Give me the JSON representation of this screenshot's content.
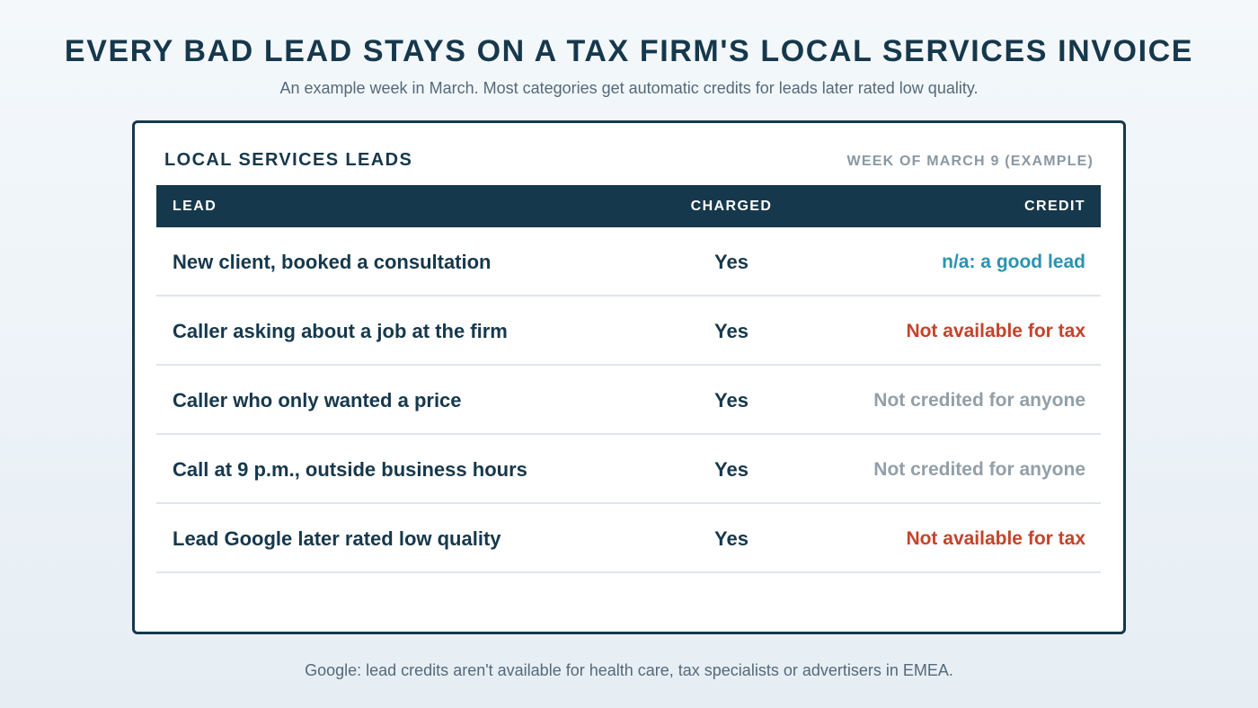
{
  "headline": "EVERY BAD LEAD STAYS ON A TAX FIRM'S LOCAL SERVICES INVOICE",
  "subhead": "An example week in March. Most categories get automatic credits for leads later rated low quality.",
  "card": {
    "title": "LOCAL SERVICES LEADS",
    "meta": "WEEK OF MARCH 9 (EXAMPLE)",
    "columns": {
      "lead": "LEAD",
      "charged": "CHARGED",
      "credit": "CREDIT"
    },
    "rows": [
      {
        "lead": "New client, booked a consultation",
        "charged": "Yes",
        "credit": "n/a: a good lead",
        "status": "good"
      },
      {
        "lead": "Caller asking about a job at the firm",
        "charged": "Yes",
        "credit": "Not available for tax",
        "status": "warn"
      },
      {
        "lead": "Caller who only wanted a price",
        "charged": "Yes",
        "credit": "Not credited for anyone",
        "status": "none"
      },
      {
        "lead": "Call at 9 p.m., outside business hours",
        "charged": "Yes",
        "credit": "Not credited for anyone",
        "status": "none"
      },
      {
        "lead": "Lead Google later rated low quality",
        "charged": "Yes",
        "credit": "Not available for tax",
        "status": "warn"
      }
    ]
  },
  "footer": "Google: lead credits aren't available for health care, tax specialists or advertisers in EMEA.",
  "colors": {
    "navy": "#16384c",
    "good": "#2a93b0",
    "warn": "#c4432b",
    "none": "#939fa8"
  }
}
